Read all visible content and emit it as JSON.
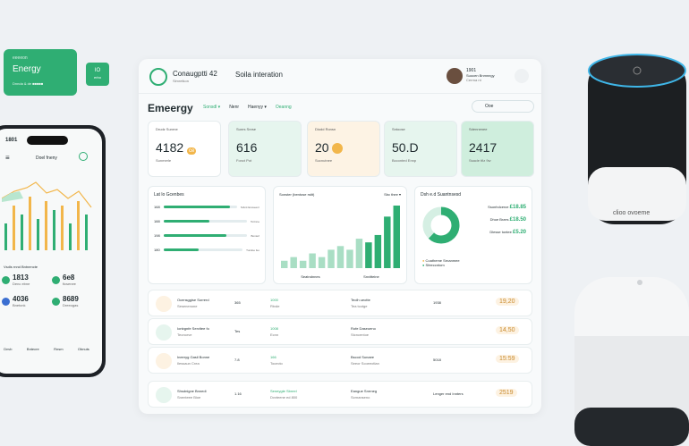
{
  "colors": {
    "accent": "#2fae73",
    "accent_light": "#d5efe3",
    "warn": "#f2b64a"
  },
  "green_card": {
    "tag": "eeeeon",
    "title": "Energy",
    "sub": "Dnnda & de ■■■■■"
  },
  "green_square": {
    "top": "IO",
    "bottom": "erbo"
  },
  "phone": {
    "time": "1801",
    "title": "Doel fneny",
    "subtitle": "Vsdls rnnd Bntnencte",
    "stats": [
      {
        "val": "1813",
        "lbl": "Denc ebne"
      },
      {
        "val": "6e8",
        "lbl": "ficsenee"
      },
      {
        "val": "4036",
        "lbl": "Bnetcnk"
      },
      {
        "val": "8689",
        "lbl": "Dreeogas"
      }
    ],
    "bottom_tabs": [
      "Dnvb",
      "Bntecre",
      "Rnsm",
      "Obnuts"
    ]
  },
  "header": {
    "app_title": "Conaugptti 42",
    "app_sub": "Slmretkon",
    "middle_title": "Soila interation",
    "user_id": "1901",
    "user_name": "Suocen Bnmnngy",
    "user_role": "Cerrna nt"
  },
  "section": {
    "title": "Emeergy",
    "filters": [
      "Sonsdl ▾",
      "Nenr",
      "Haenyy ▾",
      "Oeanng"
    ],
    "search": "Ooe"
  },
  "kpis": [
    {
      "lbl": "Drudz Sunrne",
      "val": "4182",
      "cap": "Sunmerle",
      "chip": "ce"
    },
    {
      "lbl": "Sunrs Snrse",
      "val": "616",
      "cap": "Fonct Pot"
    },
    {
      "lbl": "Diodd Ronsn",
      "val": "20",
      "cap": "Sucnutnee"
    },
    {
      "lbl": "Sntoose",
      "val": "50.D",
      "cap": "Bcconted Ennp"
    },
    {
      "lbl": "Sdennenee",
      "val": "2417",
      "cap": "Ssacle tfiz 9w"
    }
  ],
  "panel_a": {
    "title": "Lat lo Gcenbes",
    "bars": [
      {
        "lbl": "168",
        "tag": "Sdvnt Ecveeenr",
        "v": 0.9
      },
      {
        "lbl": "188",
        "tag": "Tortnne",
        "v": 0.55
      },
      {
        "lbl": "198",
        "tag": "Bonterl",
        "v": 0.75
      },
      {
        "lbl": "180",
        "tag": "Tucdoe feo",
        "v": 0.45
      }
    ]
  },
  "panel_b": {
    "title": "Sonster (bentose rstit)",
    "tag": "Sbc thee ▾",
    "bars": [
      2,
      3,
      2,
      4,
      3,
      5,
      6,
      5,
      8,
      7,
      9,
      14,
      17
    ],
    "xlabels": [
      "Seatndnnes",
      "Snvitteine"
    ]
  },
  "panel_c": {
    "title": "Dsh e.d Suantnsesd",
    "items": [
      {
        "v": "£18.85",
        "lbl": "Ssonhdcerce"
      },
      {
        "v": "£18.50",
        "lbl": "Dhoe Brzes"
      },
      {
        "v": "£5.20",
        "lbl": "Dlesse tontee"
      }
    ],
    "legend": [
      "Coatheme Srnanmee",
      "Sfeeccntom"
    ],
    "pie": [
      0.62,
      0.38
    ]
  },
  "rows": [
    {
      "name": "Ocensggise Sorrerd",
      "sub": "Sesenenone",
      "c1": "365",
      "c2": "1000",
      "c2s": "Rtvde",
      "c3": "Teolh ueotte",
      "c3s": "Tea tcotge",
      "c4": "1938",
      "amt": "19,20"
    },
    {
      "name": "Ionbgnfe Servltee fo",
      "sub": "Teonorve",
      "c1": "Tes",
      "c2": "1008",
      "c2s": "Ecnn",
      "c3": "Rofe Daseoeno",
      "c3s": "Stcncentoe",
      "c4": "",
      "amt": "14,50"
    },
    {
      "name": "Ineeryg Gasil Bonne",
      "sub": "Ilessaun Crea",
      "c1": "7.8",
      "c2": "166",
      "c2s": "Tocecto",
      "c3": "Bscod Sunaee",
      "c3s": "Seeor Scoeeotlan",
      "c4": "5018",
      "amt": "15:59"
    },
    {
      "name": "Shsdnigne Bnnedi",
      "sub": "Snenteee Bioe",
      "c1": "1.16",
      "c2": "Seneygte Sbreel",
      "c2s": "Dvvteene ed 800",
      "c3": "Eangue Snrrneg",
      "c3s": "Scrnanseno",
      "c4": "Lenger end Innters",
      "amt": "2519"
    }
  ],
  "speaker": {
    "label": "clioo ovoeme"
  }
}
